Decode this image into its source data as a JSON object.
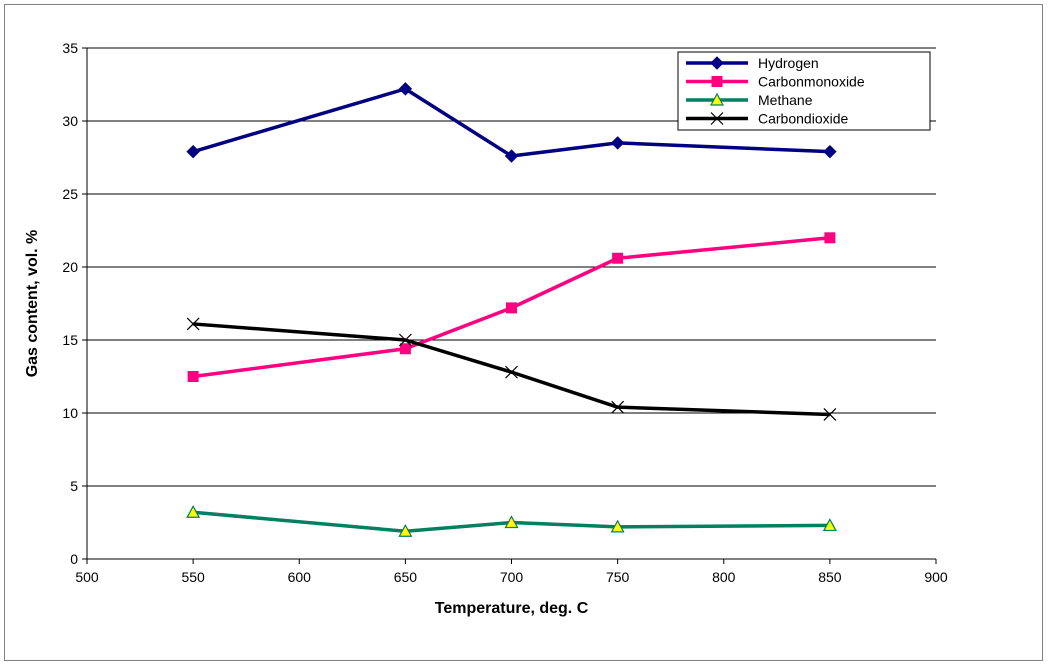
{
  "chart_data": {
    "type": "line",
    "title": "",
    "xlabel": "Temperature, deg. C",
    "ylabel": "Gas content, vol. %",
    "xlim": [
      500,
      900
    ],
    "ylim": [
      0,
      35
    ],
    "xticks": [
      500,
      550,
      600,
      650,
      700,
      750,
      800,
      850,
      900
    ],
    "yticks": [
      0,
      5,
      10,
      15,
      20,
      25,
      30,
      35
    ],
    "grid": "horizontal",
    "legend_position": "top-right",
    "x": [
      550,
      650,
      700,
      750,
      850
    ],
    "series": [
      {
        "name": "Hydrogen",
        "color": "#000080",
        "marker": "diamond",
        "values": [
          27.9,
          32.2,
          27.6,
          28.5,
          27.9
        ]
      },
      {
        "name": "Carbonmonoxide",
        "color": "#ff0080",
        "marker": "square",
        "values": [
          12.5,
          14.4,
          17.2,
          20.6,
          22.0
        ]
      },
      {
        "name": "Methane",
        "color": "#008060",
        "marker": "triangle",
        "values": [
          3.2,
          1.9,
          2.5,
          2.2,
          2.3
        ]
      },
      {
        "name": "Carbondioxide",
        "color": "#000000",
        "marker": "x",
        "values": [
          16.1,
          15.0,
          12.8,
          10.4,
          9.9
        ]
      }
    ]
  }
}
